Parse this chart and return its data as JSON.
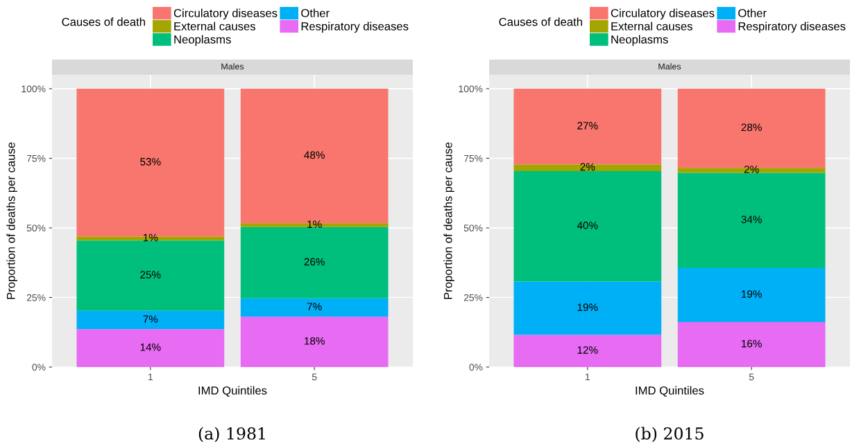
{
  "chart_data": [
    {
      "type": "bar",
      "stacked": true,
      "title": "Males",
      "xlabel": "IMD Quintiles",
      "ylabel": "Proportion of deaths per cause",
      "legend_title": "Causes of death",
      "legend": "top",
      "grid": true,
      "categories": [
        "1",
        "5"
      ],
      "ylim": [
        0,
        100
      ],
      "yticks": [
        {
          "value": 0,
          "label": "0%"
        },
        {
          "value": 25,
          "label": "25%"
        },
        {
          "value": 50,
          "label": "50%"
        },
        {
          "value": 75,
          "label": "75%"
        },
        {
          "value": 100,
          "label": "100%"
        }
      ],
      "annotations": [
        "(a) 1981"
      ],
      "series": [
        {
          "name": "Respiratory diseases",
          "color": "#e76bf3",
          "values": [
            13.6,
            18.1
          ],
          "value_labels": [
            "14%",
            "18%"
          ]
        },
        {
          "name": "Other",
          "color": "#00b0f6",
          "values": [
            6.6,
            6.6
          ],
          "value_labels": [
            "7%",
            "7%"
          ]
        },
        {
          "name": "Neoplasms",
          "color": "#00bf7d",
          "values": [
            25.3,
            25.6
          ],
          "value_labels": [
            "25%",
            "26%"
          ]
        },
        {
          "name": "External causes",
          "color": "#a3a500",
          "values": [
            1.4,
            1.4
          ],
          "value_labels": [
            "1%",
            "1%"
          ]
        },
        {
          "name": "Circulatory diseases",
          "color": "#f8766d",
          "values": [
            53.1,
            48.3
          ],
          "value_labels": [
            "53%",
            "48%"
          ]
        }
      ]
    },
    {
      "type": "bar",
      "stacked": true,
      "title": "Males",
      "xlabel": "IMD Quintiles",
      "ylabel": "Proportion of deaths per cause",
      "legend_title": "Causes of death",
      "legend": "top",
      "grid": true,
      "categories": [
        "1",
        "5"
      ],
      "ylim": [
        0,
        100
      ],
      "yticks": [
        {
          "value": 0,
          "label": "0%"
        },
        {
          "value": 25,
          "label": "25%"
        },
        {
          "value": 50,
          "label": "50%"
        },
        {
          "value": 75,
          "label": "75%"
        },
        {
          "value": 100,
          "label": "100%"
        }
      ],
      "annotations": [
        "(b) 2015"
      ],
      "series": [
        {
          "name": "Respiratory diseases",
          "color": "#e76bf3",
          "values": [
            11.6,
            16.2
          ],
          "value_labels": [
            "12%",
            "16%"
          ]
        },
        {
          "name": "Other",
          "color": "#00b0f6",
          "values": [
            19.1,
            19.4
          ],
          "value_labels": [
            "19%",
            "19%"
          ]
        },
        {
          "name": "Neoplasms",
          "color": "#00bf7d",
          "values": [
            39.7,
            34.2
          ],
          "value_labels": [
            "40%",
            "34%"
          ]
        },
        {
          "name": "External causes",
          "color": "#a3a500",
          "values": [
            2.4,
            1.8
          ],
          "value_labels": [
            "2%",
            "2%"
          ]
        },
        {
          "name": "Circulatory diseases",
          "color": "#f8766d",
          "values": [
            27.2,
            28.4
          ],
          "value_labels": [
            "27%",
            "28%"
          ]
        }
      ]
    }
  ]
}
